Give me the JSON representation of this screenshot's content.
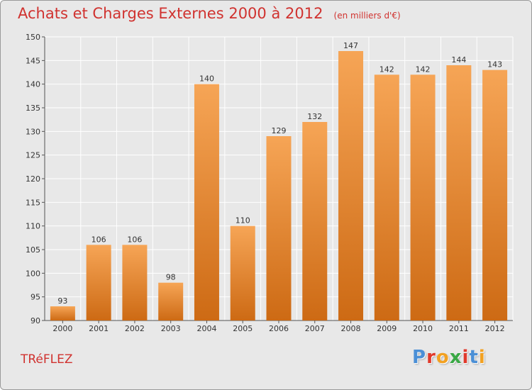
{
  "header": {
    "title": "Achats et Charges Externes 2000 à 2012",
    "unit": "(en milliers d'€)"
  },
  "footer": {
    "commune": "TRéFLEZ",
    "brand": "Proxiti",
    "brand_colors": [
      "#4a8fd6",
      "#e0392b",
      "#f2a122",
      "#3aa845",
      "#e0392b",
      "#4a8fd6",
      "#f2a122"
    ]
  },
  "colors": {
    "bar_top": "#f6a556",
    "bar_bottom": "#cd6a14",
    "grid": "#ffffff",
    "axis": "#555555",
    "plot_bg": "#e8e8e8"
  },
  "chart_data": {
    "type": "bar",
    "title": "Achats et Charges Externes 2000 à 2012",
    "xlabel": "",
    "ylabel": "",
    "categories": [
      "2000",
      "2001",
      "2002",
      "2003",
      "2004",
      "2005",
      "2006",
      "2007",
      "2008",
      "2009",
      "2010",
      "2011",
      "2012"
    ],
    "values": [
      93,
      106,
      106,
      98,
      140,
      110,
      129,
      132,
      147,
      142,
      142,
      144,
      143
    ],
    "ylim": [
      90,
      150
    ],
    "yticks": [
      90,
      95,
      100,
      105,
      110,
      115,
      120,
      125,
      130,
      135,
      140,
      145,
      150
    ],
    "grid": true,
    "legend": "none"
  }
}
